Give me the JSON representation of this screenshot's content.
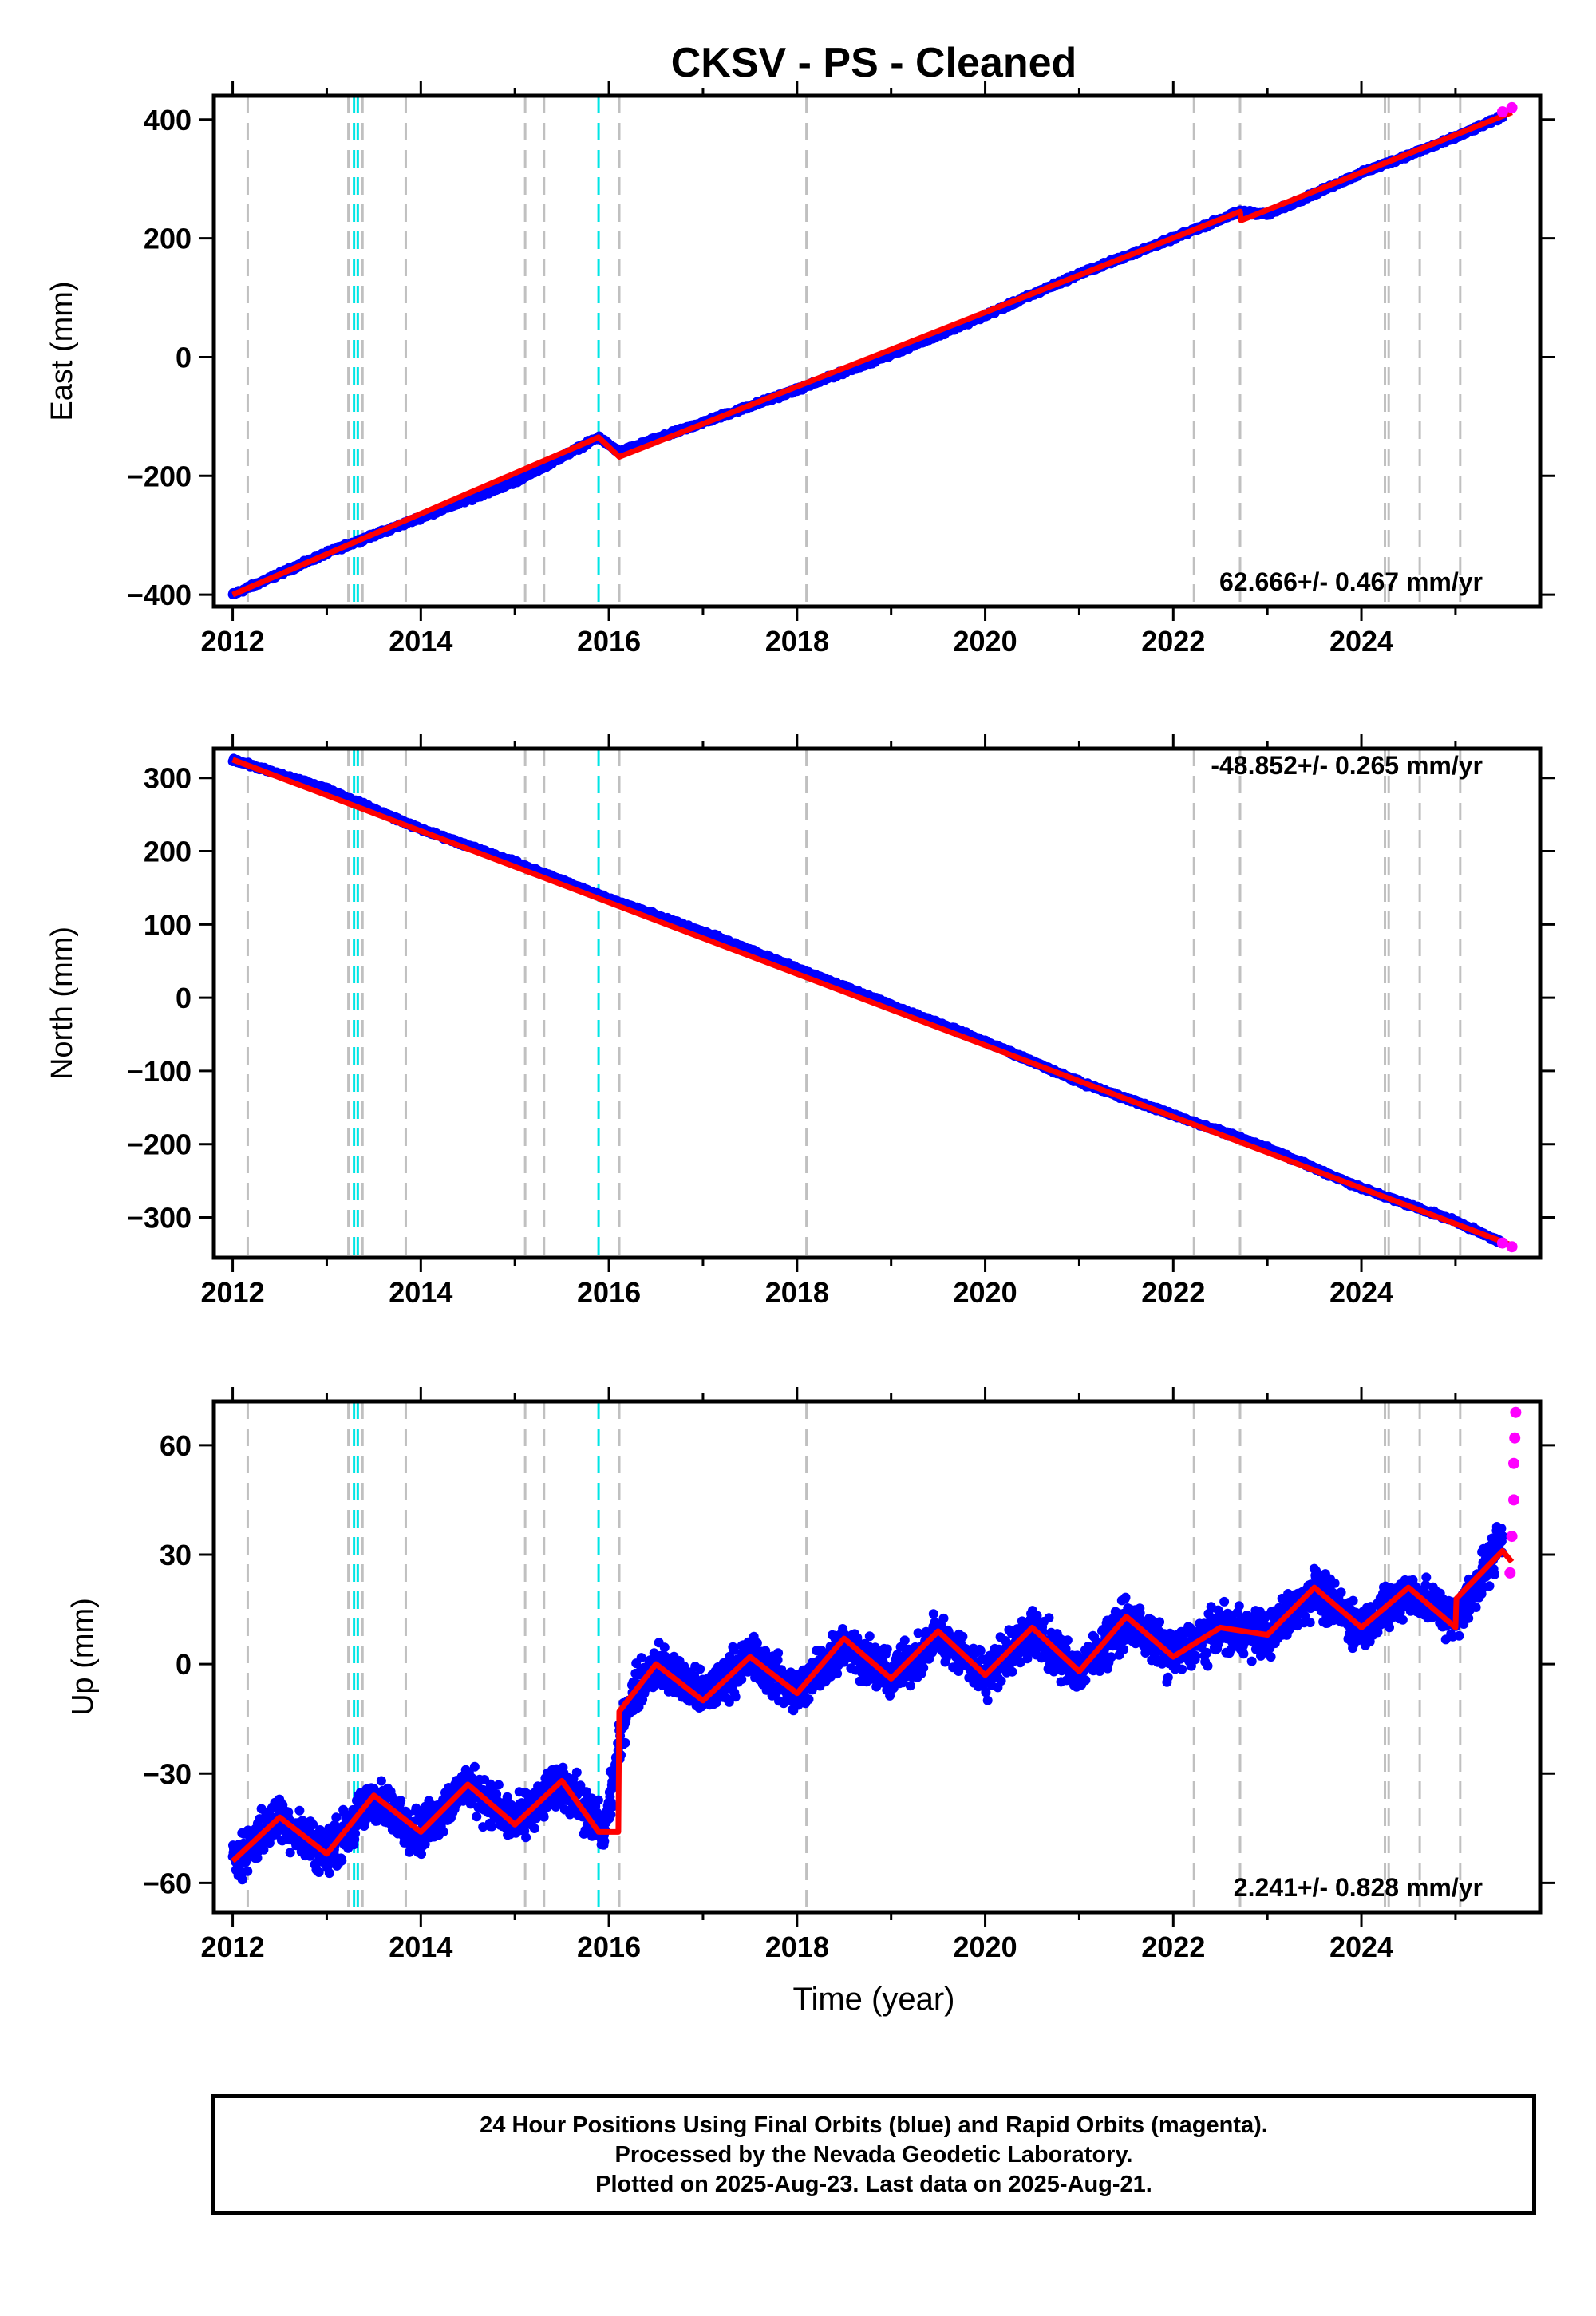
{
  "title": "CKSV  - PS - Cleaned",
  "xlabel": "Time (year)",
  "footer": {
    "line1": "24 Hour Positions Using Final Orbits (blue) and Rapid Orbits (magenta).",
    "line2": "Processed by the Nevada Geodetic Laboratory.",
    "line3": "Plotted on 2025-Aug-23. Last data on 2025-Aug-21."
  },
  "colors": {
    "final_orbits": "#0000ff",
    "rapid_orbits": "#ff00ff",
    "model": "#ff0000",
    "event_gray": "#c0c0c0",
    "event_cyan": "#00e5e5"
  },
  "events": {
    "gray": [
      2012.16,
      2013.23,
      2013.38,
      2013.84,
      2015.11,
      2015.31,
      2016.11,
      2018.1,
      2022.22,
      2022.71,
      2024.25,
      2024.29,
      2024.62,
      2025.05
    ],
    "cyan": [
      2013.29,
      2013.33,
      2015.89
    ]
  },
  "chart_data": [
    {
      "type": "scatter",
      "component": "east",
      "ylabel": "East (mm)",
      "rate_label": "62.666+/- 0.467 mm/yr",
      "xlim": [
        2011.8,
        2025.9
      ],
      "ylim": [
        -420,
        440
      ],
      "xticks": [
        "2012",
        "2014",
        "2016",
        "2018",
        "2020",
        "2022",
        "2024"
      ],
      "yticks": [
        "-400",
        "-200",
        "0",
        "200",
        "400"
      ],
      "yticks_values": [
        -400,
        -200,
        0,
        200,
        400
      ],
      "grid": false,
      "series": [
        {
          "name": "Final Orbits",
          "color": "#0000ff",
          "x": [
            2012.0,
            2013.0,
            2014.0,
            2015.0,
            2015.89,
            2016.11,
            2017.0,
            2018.0,
            2019.0,
            2020.0,
            2021.0,
            2022.0,
            2022.71,
            2023.0,
            2024.0,
            2025.0,
            2025.5
          ],
          "y": [
            -400,
            -330,
            -270,
            -210,
            -135,
            -160,
            -110,
            -55,
            5,
            70,
            140,
            200,
            245,
            240,
            310,
            370,
            405
          ]
        },
        {
          "name": "Rapid Orbits",
          "color": "#ff00ff",
          "x": [
            2025.5,
            2025.6
          ],
          "y": [
            413,
            420
          ]
        },
        {
          "name": "Model",
          "color": "#ff0000",
          "x": [
            2012.0,
            2015.89,
            2016.11,
            2022.71,
            2022.72,
            2025.6
          ],
          "y": [
            -400,
            -135,
            -168,
            245,
            230,
            412
          ]
        }
      ]
    },
    {
      "type": "scatter",
      "component": "north",
      "ylabel": "North (mm)",
      "rate_label": "-48.852+/- 0.265 mm/yr",
      "xlim": [
        2011.8,
        2025.9
      ],
      "ylim": [
        -355,
        340
      ],
      "xticks": [
        "2012",
        "2014",
        "2016",
        "2018",
        "2020",
        "2022",
        "2024"
      ],
      "yticks": [
        "-300",
        "-200",
        "-100",
        "0",
        "100",
        "200",
        "300"
      ],
      "yticks_values": [
        -300,
        -200,
        -100,
        0,
        100,
        200,
        300
      ],
      "grid": false,
      "series": [
        {
          "name": "Final Orbits",
          "color": "#0000ff",
          "x": [
            2012.0,
            2013.0,
            2014.0,
            2015.0,
            2016.0,
            2017.0,
            2018.0,
            2019.0,
            2020.0,
            2021.0,
            2022.0,
            2023.0,
            2024.0,
            2025.0,
            2025.5
          ],
          "y": [
            325,
            285,
            230,
            185,
            135,
            90,
            40,
            -10,
            -60,
            -115,
            -160,
            -205,
            -260,
            -305,
            -335
          ]
        },
        {
          "name": "Rapid Orbits",
          "color": "#ff00ff",
          "x": [
            2025.5,
            2025.6
          ],
          "y": [
            -335,
            -340
          ]
        },
        {
          "name": "Model",
          "color": "#ff0000",
          "x": [
            2012.0,
            2025.6
          ],
          "y": [
            325,
            -338
          ]
        }
      ]
    },
    {
      "type": "scatter",
      "component": "up",
      "ylabel": "Up (mm)",
      "rate_label": "2.241+/- 0.828 mm/yr",
      "xlim": [
        2011.8,
        2025.9
      ],
      "ylim": [
        -68,
        72
      ],
      "xticks": [
        "2012",
        "2014",
        "2016",
        "2018",
        "2020",
        "2022",
        "2024"
      ],
      "yticks": [
        "-60",
        "-30",
        "0",
        "30",
        "60"
      ],
      "yticks_values": [
        -60,
        -30,
        0,
        30,
        60
      ],
      "grid": false,
      "series": [
        {
          "name": "Final Orbits",
          "color": "#0000ff",
          "x": [
            2012.0,
            2012.5,
            2013.0,
            2013.5,
            2014.0,
            2014.5,
            2015.0,
            2015.5,
            2015.95,
            2016.2,
            2016.5,
            2017.0,
            2017.5,
            2018.0,
            2018.5,
            2019.0,
            2019.5,
            2020.0,
            2020.5,
            2021.0,
            2021.5,
            2022.0,
            2022.5,
            2023.0,
            2023.5,
            2024.0,
            2024.5,
            2025.0,
            2025.5
          ],
          "y": [
            -54,
            -42,
            -52,
            -37,
            -46,
            -33,
            -44,
            -32,
            -46,
            -10,
            0,
            -9,
            2,
            -8,
            6,
            -4,
            8,
            -3,
            9,
            -2,
            12,
            2,
            10,
            8,
            20,
            10,
            20,
            12,
            35
          ]
        },
        {
          "name": "Rapid Orbits",
          "color": "#ff00ff",
          "x": [
            2025.58,
            2025.6,
            2025.62,
            2025.62,
            2025.63,
            2025.64
          ],
          "y": [
            25,
            35,
            45,
            55,
            62,
            69
          ]
        },
        {
          "name": "Model",
          "color": "#ff0000",
          "x": [
            2012.0,
            2012.5,
            2013.0,
            2013.5,
            2014.0,
            2014.5,
            2015.0,
            2015.5,
            2015.89,
            2016.1,
            2016.11,
            2016.5,
            2017.0,
            2017.5,
            2018.0,
            2018.5,
            2019.0,
            2019.5,
            2020.0,
            2020.5,
            2021.0,
            2021.5,
            2022.0,
            2022.5,
            2023.0,
            2023.5,
            2024.0,
            2024.5,
            2025.0,
            2025.01,
            2025.5,
            2025.6
          ],
          "y": [
            -54,
            -42,
            -52,
            -36,
            -46,
            -33,
            -44,
            -32,
            -46,
            -46,
            -13,
            0,
            -10,
            2,
            -8,
            7,
            -4,
            9,
            -3,
            10,
            -2,
            13,
            2,
            10,
            8,
            21,
            10,
            21,
            10,
            18,
            31,
            28
          ]
        }
      ]
    }
  ]
}
